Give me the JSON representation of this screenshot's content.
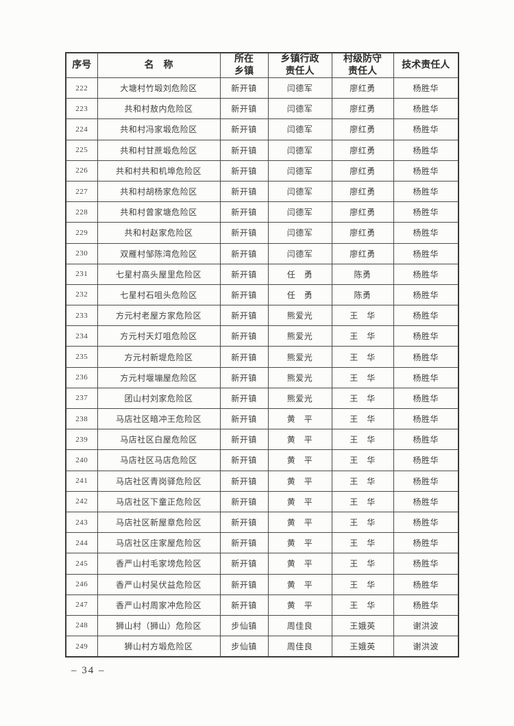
{
  "page": {
    "footer_page_number": "– 34 –"
  },
  "colors": {
    "paper": "#fcfcfb",
    "text": "#3d3d3d",
    "border": "#4a4a4a"
  },
  "table": {
    "headers": [
      "序号",
      "名　称",
      "所在\n乡镇",
      "乡镇行政\n责任人",
      "村级防守\n责任人",
      "技术责任人"
    ],
    "column_names": [
      "序号",
      "名称",
      "所在乡镇",
      "乡镇行政责任人",
      "村级防守责任人",
      "技术责任人"
    ],
    "rows": [
      [
        "222",
        "大塘村竹塅刘危险区",
        "新开镇",
        "闫德军",
        "廖红勇",
        "杨胜华"
      ],
      [
        "223",
        "共和村敖内危险区",
        "新开镇",
        "闫德军",
        "廖红勇",
        "杨胜华"
      ],
      [
        "224",
        "共和村冯家塅危险区",
        "新开镇",
        "闫德军",
        "廖红勇",
        "杨胜华"
      ],
      [
        "225",
        "共和村甘蔗塅危险区",
        "新开镇",
        "闫德军",
        "廖红勇",
        "杨胜华"
      ],
      [
        "226",
        "共和村共和机埠危险区",
        "新开镇",
        "闫德军",
        "廖红勇",
        "杨胜华"
      ],
      [
        "227",
        "共和村胡杨家危险区",
        "新开镇",
        "闫德军",
        "廖红勇",
        "杨胜华"
      ],
      [
        "228",
        "共和村曾家塘危险区",
        "新开镇",
        "闫德军",
        "廖红勇",
        "杨胜华"
      ],
      [
        "229",
        "共和村赵家危险区",
        "新开镇",
        "闫德军",
        "廖红勇",
        "杨胜华"
      ],
      [
        "230",
        "双雁村邹陈湾危险区",
        "新开镇",
        "闫德军",
        "廖红勇",
        "杨胜华"
      ],
      [
        "231",
        "七星村高头屋里危险区",
        "新开镇",
        "任　勇",
        "陈勇",
        "杨胜华"
      ],
      [
        "232",
        "七星村石咀头危险区",
        "新开镇",
        "任　勇",
        "陈勇",
        "杨胜华"
      ],
      [
        "233",
        "方元村老屋方家危险区",
        "新开镇",
        "熊爱光",
        "王　华",
        "杨胜华"
      ],
      [
        "234",
        "方元村天灯咀危险区",
        "新开镇",
        "熊爱光",
        "王　华",
        "杨胜华"
      ],
      [
        "235",
        "方元村新堤危险区",
        "新开镇",
        "熊爱光",
        "王　华",
        "杨胜华"
      ],
      [
        "236",
        "方元村堰塴屋危险区",
        "新开镇",
        "熊爱光",
        "王　华",
        "杨胜华"
      ],
      [
        "237",
        "团山村刘家危险区",
        "新开镇",
        "熊爱光",
        "王　华",
        "杨胜华"
      ],
      [
        "238",
        "马店社区暗冲王危险区",
        "新开镇",
        "黄　平",
        "王　华",
        "杨胜华"
      ],
      [
        "239",
        "马店社区白屋危险区",
        "新开镇",
        "黄　平",
        "王　华",
        "杨胜华"
      ],
      [
        "240",
        "马店社区马店危险区",
        "新开镇",
        "黄　平",
        "王　华",
        "杨胜华"
      ],
      [
        "241",
        "马店社区青岗驿危险区",
        "新开镇",
        "黄　平",
        "王　华",
        "杨胜华"
      ],
      [
        "242",
        "马店社区下童正危险区",
        "新开镇",
        "黄　平",
        "王　华",
        "杨胜华"
      ],
      [
        "243",
        "马店社区新屋章危险区",
        "新开镇",
        "黄　平",
        "王　华",
        "杨胜华"
      ],
      [
        "244",
        "马店社区庄家屋危险区",
        "新开镇",
        "黄　平",
        "王　华",
        "杨胜华"
      ],
      [
        "245",
        "香严山村毛家塝危险区",
        "新开镇",
        "黄　平",
        "王　华",
        "杨胜华"
      ],
      [
        "246",
        "香严山村吴伏益危险区",
        "新开镇",
        "黄　平",
        "王　华",
        "杨胜华"
      ],
      [
        "247",
        "香严山村周家冲危险区",
        "新开镇",
        "黄　平",
        "王　华",
        "杨胜华"
      ],
      [
        "248",
        "狮山村（狮山）危险区",
        "步仙镇",
        "周佳良",
        "王娥英",
        "谢洪波"
      ],
      [
        "249",
        "狮山村方塅危险区",
        "步仙镇",
        "周佳良",
        "王娥英",
        "谢洪波"
      ]
    ]
  }
}
